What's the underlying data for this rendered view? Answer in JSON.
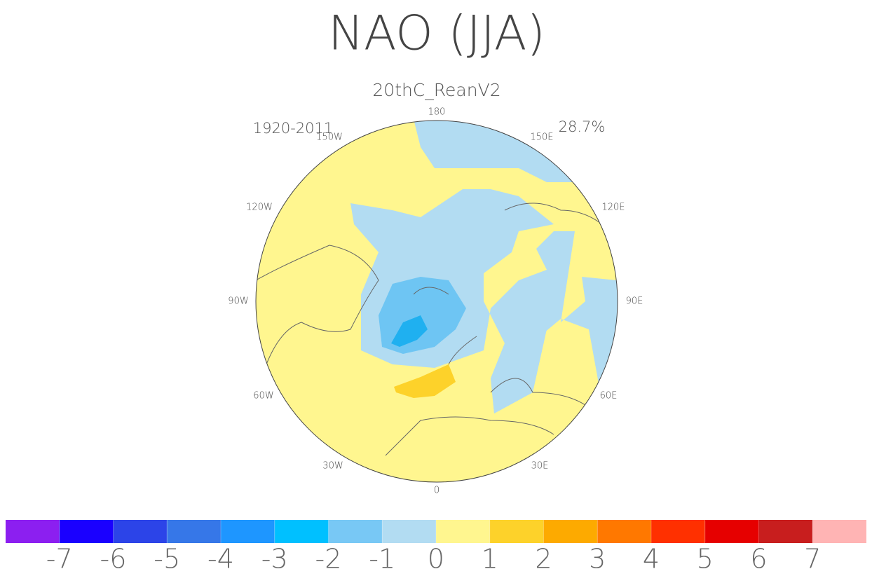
{
  "map": {
    "title": "NAO (JJA)",
    "subtitle": "20thC_ReanV2",
    "period": "1920-2011",
    "variance": "28.7%",
    "lon_labels": [
      "180",
      "150E",
      "120E",
      "90E",
      "60E",
      "30E",
      "0",
      "30W",
      "60W",
      "90W",
      "120W",
      "150W"
    ]
  },
  "colorbar": {
    "colors": [
      "#8c1ff0",
      "#1a00ff",
      "#2c44e8",
      "#3677e8",
      "#1e96ff",
      "#00c0ff",
      "#78c8f5",
      "#b2dcf2",
      "#fff68f",
      "#fdd22a",
      "#fdaa00",
      "#ff7800",
      "#ff3000",
      "#e60000",
      "#c81e1e",
      "#ffb4b4"
    ],
    "levels": [
      -7,
      -6,
      -5,
      -4,
      -3,
      -2,
      -1,
      0,
      1,
      2,
      3,
      4,
      5,
      6,
      7
    ]
  }
}
